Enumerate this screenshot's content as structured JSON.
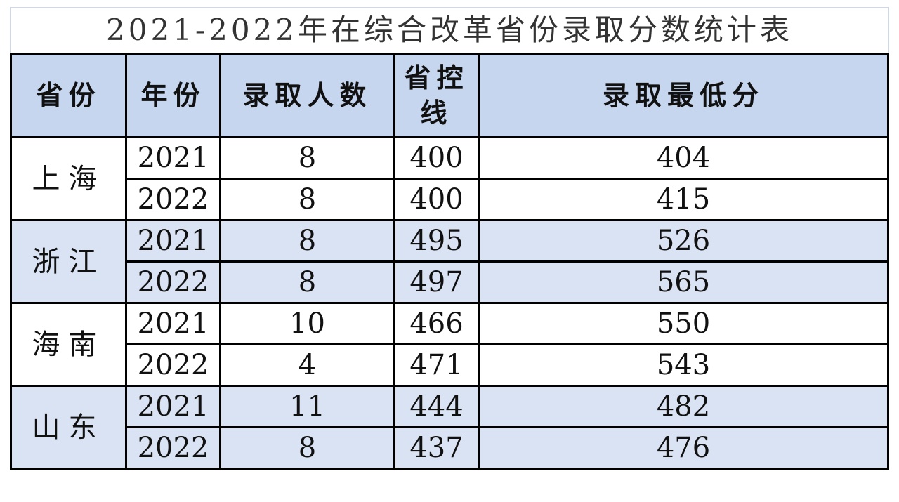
{
  "title": "2021-2022年在综合改革省份录取分数统计表",
  "table": {
    "header": [
      "省份",
      "年份",
      "录取人数",
      "省控线",
      "录取最低分"
    ],
    "groups": [
      {
        "province": "上海",
        "rows": [
          [
            2021,
            8,
            400,
            404
          ],
          [
            2022,
            8,
            400,
            415
          ]
        ]
      },
      {
        "province": "浙江",
        "rows": [
          [
            2021,
            8,
            495,
            526
          ],
          [
            2022,
            8,
            497,
            565
          ]
        ]
      },
      {
        "province": "海南",
        "rows": [
          [
            2021,
            10,
            466,
            550
          ],
          [
            2022,
            4,
            471,
            543
          ]
        ]
      },
      {
        "province": "山东",
        "rows": [
          [
            2021,
            11,
            444,
            482
          ],
          [
            2022,
            8,
            437,
            476
          ]
        ]
      }
    ]
  }
}
